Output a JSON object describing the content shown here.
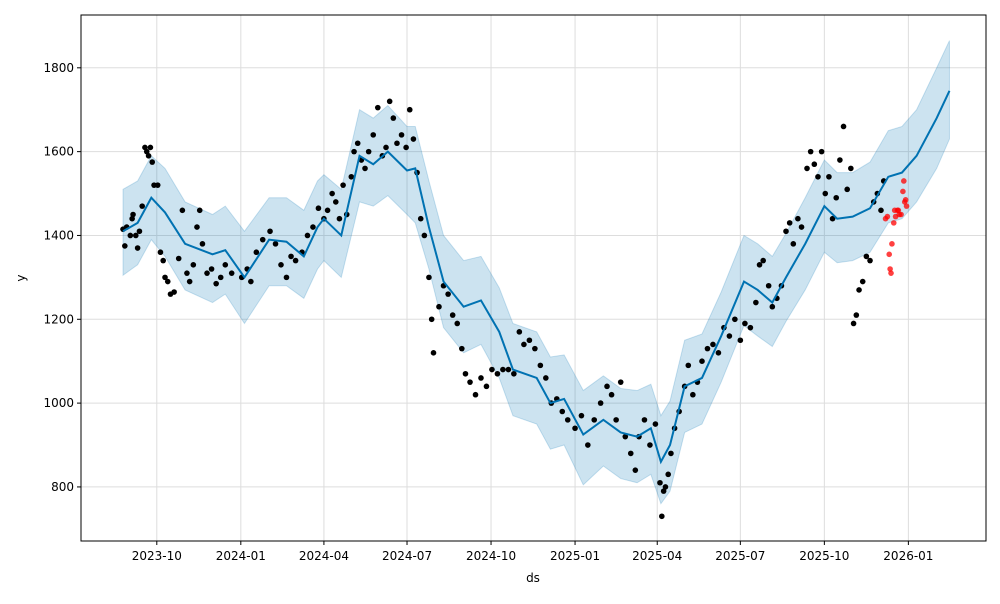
{
  "chart_data": {
    "type": "line",
    "title": "",
    "xlabel": "ds",
    "ylabel": "y",
    "xlim": [
      "2023-07-10",
      "2026-03-27"
    ],
    "ylim": [
      671,
      1926
    ],
    "grid": true,
    "x_ticks": [
      "2023-10",
      "2024-01",
      "2024-04",
      "2024-07",
      "2024-10",
      "2025-01",
      "2025-04",
      "2025-07",
      "2025-10",
      "2026-01"
    ],
    "y_ticks": [
      800,
      1000,
      1200,
      1400,
      1600,
      1800
    ],
    "colors": {
      "forecast": "#0072B2",
      "interval": "#0072B2",
      "actual": "#000000",
      "test": "#ff0000"
    },
    "forecast": [
      [
        "2023-08-25",
        1410,
        1305,
        1510
      ],
      [
        "2023-09-10",
        1430,
        1330,
        1530
      ],
      [
        "2023-09-25",
        1490,
        1390,
        1590
      ],
      [
        "2023-10-10",
        1455,
        1350,
        1560
      ],
      [
        "2023-11-01",
        1380,
        1270,
        1480
      ],
      [
        "2023-12-01",
        1355,
        1240,
        1450
      ],
      [
        "2023-12-15",
        1365,
        1260,
        1470
      ],
      [
        "2024-01-05",
        1300,
        1190,
        1410
      ],
      [
        "2024-02-01",
        1390,
        1280,
        1490
      ],
      [
        "2024-02-20",
        1385,
        1280,
        1490
      ],
      [
        "2024-03-10",
        1350,
        1250,
        1460
      ],
      [
        "2024-03-25",
        1420,
        1320,
        1530
      ],
      [
        "2024-04-01",
        1440,
        1340,
        1545
      ],
      [
        "2024-04-20",
        1400,
        1300,
        1510
      ],
      [
        "2024-05-10",
        1590,
        1480,
        1700
      ],
      [
        "2024-05-25",
        1570,
        1470,
        1680
      ],
      [
        "2024-06-10",
        1600,
        1495,
        1710
      ],
      [
        "2024-07-01",
        1555,
        1450,
        1660
      ],
      [
        "2024-07-10",
        1560,
        1430,
        1660
      ],
      [
        "2024-07-25",
        1420,
        1320,
        1530
      ],
      [
        "2024-08-10",
        1290,
        1180,
        1400
      ],
      [
        "2024-09-01",
        1230,
        1120,
        1340
      ],
      [
        "2024-09-20",
        1245,
        1140,
        1350
      ],
      [
        "2024-10-10",
        1170,
        1060,
        1275
      ],
      [
        "2024-10-25",
        1080,
        970,
        1190
      ],
      [
        "2024-11-20",
        1060,
        950,
        1170
      ],
      [
        "2024-12-05",
        1000,
        890,
        1110
      ],
      [
        "2024-12-20",
        1010,
        900,
        1115
      ],
      [
        "2025-01-10",
        925,
        805,
        1030
      ],
      [
        "2025-02-01",
        960,
        850,
        1065
      ],
      [
        "2025-02-20",
        930,
        820,
        1035
      ],
      [
        "2025-03-10",
        920,
        810,
        1030
      ],
      [
        "2025-03-25",
        940,
        830,
        1045
      ],
      [
        "2025-04-05",
        860,
        760,
        970
      ],
      [
        "2025-04-15",
        900,
        790,
        1005
      ],
      [
        "2025-05-01",
        1040,
        930,
        1150
      ],
      [
        "2025-05-20",
        1060,
        950,
        1165
      ],
      [
        "2025-06-10",
        1160,
        1050,
        1265
      ],
      [
        "2025-07-05",
        1290,
        1185,
        1400
      ],
      [
        "2025-07-20",
        1270,
        1160,
        1380
      ],
      [
        "2025-08-05",
        1240,
        1135,
        1350
      ],
      [
        "2025-08-20",
        1300,
        1195,
        1405
      ],
      [
        "2025-09-10",
        1380,
        1270,
        1490
      ],
      [
        "2025-10-01",
        1470,
        1360,
        1580
      ],
      [
        "2025-10-15",
        1440,
        1335,
        1550
      ],
      [
        "2025-11-01",
        1445,
        1340,
        1550
      ],
      [
        "2025-11-20",
        1465,
        1360,
        1575
      ],
      [
        "2025-12-10",
        1540,
        1430,
        1650
      ],
      [
        "2025-12-25",
        1550,
        1440,
        1660
      ],
      [
        "2026-01-10",
        1590,
        1480,
        1700
      ],
      [
        "2026-02-01",
        1680,
        1560,
        1800
      ],
      [
        "2026-02-15",
        1745,
        1630,
        1865
      ]
    ],
    "actual": [
      [
        "2023-08-25",
        1415
      ],
      [
        "2023-08-27",
        1375
      ],
      [
        "2023-08-29",
        1420
      ],
      [
        "2023-09-02",
        1400
      ],
      [
        "2023-09-04",
        1440
      ],
      [
        "2023-09-05",
        1450
      ],
      [
        "2023-09-08",
        1400
      ],
      [
        "2023-09-10",
        1370
      ],
      [
        "2023-09-12",
        1410
      ],
      [
        "2023-09-15",
        1470
      ],
      [
        "2023-09-18",
        1610
      ],
      [
        "2023-09-20",
        1600
      ],
      [
        "2023-09-22",
        1590
      ],
      [
        "2023-09-24",
        1610
      ],
      [
        "2023-09-26",
        1575
      ],
      [
        "2023-09-28",
        1520
      ],
      [
        "2023-10-02",
        1520
      ],
      [
        "2023-10-05",
        1360
      ],
      [
        "2023-10-08",
        1340
      ],
      [
        "2023-10-10",
        1300
      ],
      [
        "2023-10-13",
        1290
      ],
      [
        "2023-10-16",
        1260
      ],
      [
        "2023-10-20",
        1265
      ],
      [
        "2023-10-25",
        1345
      ],
      [
        "2023-10-29",
        1460
      ],
      [
        "2023-11-03",
        1310
      ],
      [
        "2023-11-06",
        1290
      ],
      [
        "2023-11-10",
        1330
      ],
      [
        "2023-11-14",
        1420
      ],
      [
        "2023-11-17",
        1460
      ],
      [
        "2023-11-20",
        1380
      ],
      [
        "2023-11-25",
        1310
      ],
      [
        "2023-11-30",
        1320
      ],
      [
        "2023-12-05",
        1285
      ],
      [
        "2023-12-10",
        1300
      ],
      [
        "2023-12-15",
        1330
      ],
      [
        "2023-12-22",
        1310
      ],
      [
        "2024-01-02",
        1300
      ],
      [
        "2024-01-08",
        1320
      ],
      [
        "2024-01-12",
        1290
      ],
      [
        "2024-01-18",
        1360
      ],
      [
        "2024-01-25",
        1390
      ],
      [
        "2024-02-02",
        1410
      ],
      [
        "2024-02-08",
        1380
      ],
      [
        "2024-02-14",
        1330
      ],
      [
        "2024-02-20",
        1300
      ],
      [
        "2024-02-25",
        1350
      ],
      [
        "2024-03-01",
        1340
      ],
      [
        "2024-03-08",
        1360
      ],
      [
        "2024-03-14",
        1400
      ],
      [
        "2024-03-20",
        1420
      ],
      [
        "2024-03-26",
        1465
      ],
      [
        "2024-04-01",
        1440
      ],
      [
        "2024-04-05",
        1460
      ],
      [
        "2024-04-10",
        1500
      ],
      [
        "2024-04-14",
        1480
      ],
      [
        "2024-04-18",
        1440
      ],
      [
        "2024-04-22",
        1520
      ],
      [
        "2024-04-26",
        1450
      ],
      [
        "2024-05-01",
        1540
      ],
      [
        "2024-05-04",
        1600
      ],
      [
        "2024-05-08",
        1620
      ],
      [
        "2024-05-12",
        1580
      ],
      [
        "2024-05-16",
        1560
      ],
      [
        "2024-05-20",
        1600
      ],
      [
        "2024-05-25",
        1640
      ],
      [
        "2024-05-30",
        1705
      ],
      [
        "2024-06-04",
        1590
      ],
      [
        "2024-06-08",
        1610
      ],
      [
        "2024-06-12",
        1720
      ],
      [
        "2024-06-16",
        1680
      ],
      [
        "2024-06-20",
        1620
      ],
      [
        "2024-06-25",
        1640
      ],
      [
        "2024-06-30",
        1610
      ],
      [
        "2024-07-04",
        1700
      ],
      [
        "2024-07-08",
        1630
      ],
      [
        "2024-07-12",
        1550
      ],
      [
        "2024-07-16",
        1440
      ],
      [
        "2024-07-20",
        1400
      ],
      [
        "2024-07-25",
        1300
      ],
      [
        "2024-07-28",
        1200
      ],
      [
        "2024-07-30",
        1120
      ],
      [
        "2024-08-05",
        1230
      ],
      [
        "2024-08-10",
        1280
      ],
      [
        "2024-08-15",
        1260
      ],
      [
        "2024-08-20",
        1210
      ],
      [
        "2024-08-25",
        1190
      ],
      [
        "2024-08-30",
        1130
      ],
      [
        "2024-09-03",
        1070
      ],
      [
        "2024-09-08",
        1050
      ],
      [
        "2024-09-14",
        1020
      ],
      [
        "2024-09-20",
        1060
      ],
      [
        "2024-09-26",
        1040
      ],
      [
        "2024-10-02",
        1080
      ],
      [
        "2024-10-08",
        1070
      ],
      [
        "2024-10-14",
        1080
      ],
      [
        "2024-10-20",
        1080
      ],
      [
        "2024-10-26",
        1070
      ],
      [
        "2024-11-01",
        1170
      ],
      [
        "2024-11-06",
        1140
      ],
      [
        "2024-11-12",
        1150
      ],
      [
        "2024-11-18",
        1130
      ],
      [
        "2024-11-24",
        1090
      ],
      [
        "2024-11-30",
        1060
      ],
      [
        "2024-12-06",
        1000
      ],
      [
        "2024-12-12",
        1010
      ],
      [
        "2024-12-18",
        980
      ],
      [
        "2024-12-24",
        960
      ],
      [
        "2025-01-01",
        940
      ],
      [
        "2025-01-08",
        970
      ],
      [
        "2025-01-15",
        900
      ],
      [
        "2025-01-22",
        960
      ],
      [
        "2025-01-29",
        1000
      ],
      [
        "2025-02-05",
        1040
      ],
      [
        "2025-02-10",
        1020
      ],
      [
        "2025-02-15",
        960
      ],
      [
        "2025-02-20",
        1050
      ],
      [
        "2025-02-25",
        920
      ],
      [
        "2025-03-03",
        880
      ],
      [
        "2025-03-08",
        840
      ],
      [
        "2025-03-12",
        920
      ],
      [
        "2025-03-18",
        960
      ],
      [
        "2025-03-24",
        900
      ],
      [
        "2025-03-30",
        950
      ],
      [
        "2025-04-04",
        810
      ],
      [
        "2025-04-06",
        730
      ],
      [
        "2025-04-08",
        790
      ],
      [
        "2025-04-10",
        800
      ],
      [
        "2025-04-13",
        830
      ],
      [
        "2025-04-16",
        880
      ],
      [
        "2025-04-20",
        940
      ],
      [
        "2025-04-25",
        980
      ],
      [
        "2025-05-01",
        1040
      ],
      [
        "2025-05-05",
        1090
      ],
      [
        "2025-05-10",
        1020
      ],
      [
        "2025-05-15",
        1050
      ],
      [
        "2025-05-20",
        1100
      ],
      [
        "2025-05-26",
        1130
      ],
      [
        "2025-06-01",
        1140
      ],
      [
        "2025-06-07",
        1120
      ],
      [
        "2025-06-13",
        1180
      ],
      [
        "2025-06-19",
        1160
      ],
      [
        "2025-06-25",
        1200
      ],
      [
        "2025-07-01",
        1150
      ],
      [
        "2025-07-06",
        1190
      ],
      [
        "2025-07-12",
        1180
      ],
      [
        "2025-07-18",
        1240
      ],
      [
        "2025-07-22",
        1330
      ],
      [
        "2025-07-26",
        1340
      ],
      [
        "2025-08-01",
        1280
      ],
      [
        "2025-08-05",
        1230
      ],
      [
        "2025-08-10",
        1250
      ],
      [
        "2025-08-15",
        1280
      ],
      [
        "2025-08-20",
        1410
      ],
      [
        "2025-08-24",
        1430
      ],
      [
        "2025-08-28",
        1380
      ],
      [
        "2025-09-02",
        1440
      ],
      [
        "2025-09-06",
        1420
      ],
      [
        "2025-09-12",
        1560
      ],
      [
        "2025-09-16",
        1600
      ],
      [
        "2025-09-20",
        1570
      ],
      [
        "2025-09-24",
        1540
      ],
      [
        "2025-09-28",
        1600
      ],
      [
        "2025-10-02",
        1500
      ],
      [
        "2025-10-06",
        1540
      ],
      [
        "2025-10-10",
        1440
      ],
      [
        "2025-10-14",
        1490
      ],
      [
        "2025-10-18",
        1580
      ],
      [
        "2025-10-22",
        1660
      ],
      [
        "2025-10-26",
        1510
      ],
      [
        "2025-10-30",
        1560
      ],
      [
        "2025-11-02",
        1190
      ],
      [
        "2025-11-05",
        1210
      ],
      [
        "2025-11-08",
        1270
      ],
      [
        "2025-11-12",
        1290
      ],
      [
        "2025-11-16",
        1350
      ],
      [
        "2025-11-20",
        1340
      ],
      [
        "2025-11-24",
        1480
      ],
      [
        "2025-11-28",
        1500
      ],
      [
        "2025-12-02",
        1460
      ],
      [
        "2025-12-05",
        1530
      ]
    ],
    "test": [
      [
        "2025-12-07",
        1440
      ],
      [
        "2025-12-09",
        1445
      ],
      [
        "2025-12-11",
        1355
      ],
      [
        "2025-12-12",
        1320
      ],
      [
        "2025-12-13",
        1310
      ],
      [
        "2025-12-14",
        1380
      ],
      [
        "2025-12-16",
        1430
      ],
      [
        "2025-12-17",
        1460
      ],
      [
        "2025-12-18",
        1445
      ],
      [
        "2025-12-20",
        1460
      ],
      [
        "2025-12-21",
        1460
      ],
      [
        "2025-12-22",
        1450
      ],
      [
        "2025-12-24",
        1450
      ],
      [
        "2025-12-26",
        1505
      ],
      [
        "2025-12-27",
        1530
      ],
      [
        "2025-12-28",
        1480
      ],
      [
        "2025-12-29",
        1485
      ],
      [
        "2025-12-30",
        1470
      ]
    ]
  }
}
